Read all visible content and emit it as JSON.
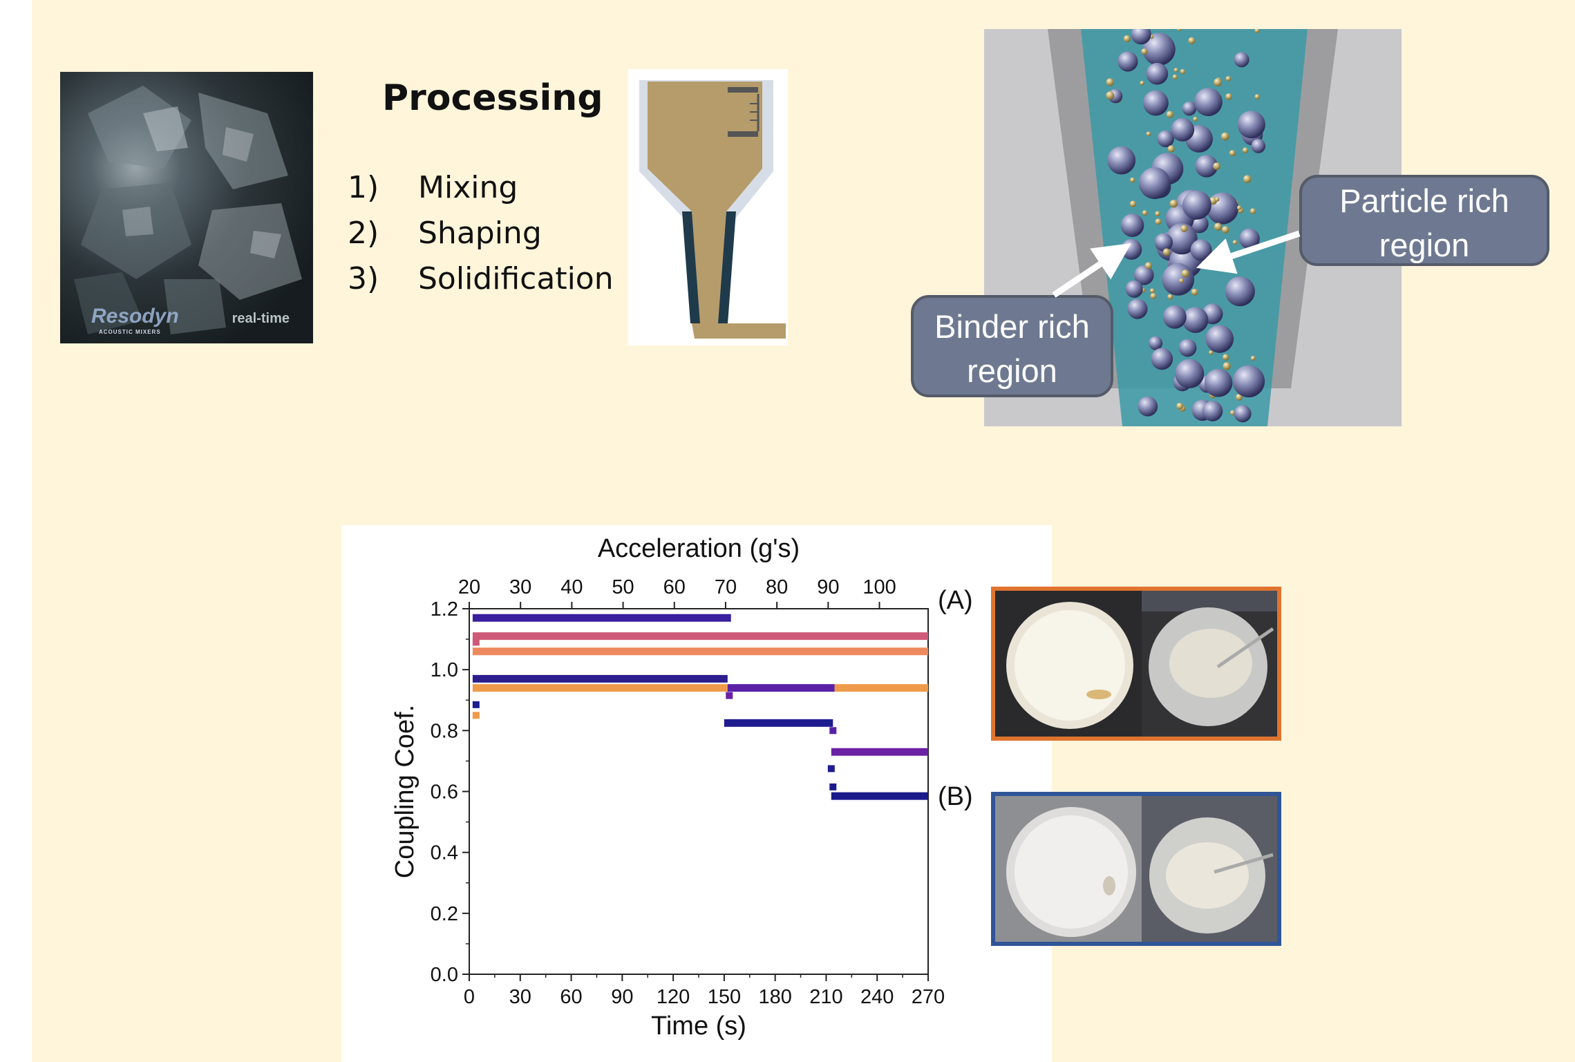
{
  "left_photo": {
    "watermark_brand": "Resodyn",
    "watermark_tagline": "ACOUSTIC MIXERS",
    "watermark_label": "real-time"
  },
  "processing": {
    "title": "Processing",
    "steps": [
      {
        "num": "1)",
        "label": "Mixing"
      },
      {
        "num": "2)",
        "label": "Shaping"
      },
      {
        "num": "3)",
        "label": "Solidification"
      }
    ]
  },
  "render": {
    "callouts": {
      "particle": "Particle rich region",
      "binder": "Binder rich region"
    }
  },
  "panel_tags": {
    "a": "(A)",
    "b": "(B)"
  },
  "colors": {
    "background": "#fff5da",
    "orange_frame": "#e0742f",
    "blue_frame": "#2f5597",
    "callout_fill": "#6e7991"
  },
  "chart_data": {
    "type": "line",
    "xlabel": "Time (s)",
    "ylabel": "Coupling Coef.",
    "top_axis_label": "Acceleration (g's)",
    "xlim": [
      0,
      270
    ],
    "ylim": [
      0,
      1.2
    ],
    "top_xlim": [
      20,
      109.5
    ],
    "x_ticks": [
      "0",
      "30",
      "60",
      "90",
      "120",
      "150",
      "180",
      "210",
      "240",
      "270"
    ],
    "y_ticks": [
      "0.0",
      "0.2",
      "0.4",
      "0.6",
      "0.8",
      "1.0",
      "1.2"
    ],
    "top_ticks": [
      "20",
      "30",
      "40",
      "50",
      "60",
      "70",
      "80",
      "90",
      "100"
    ],
    "segments": [
      {
        "color": "#3a1f9e",
        "x": [
          2,
          154
        ],
        "y": 1.17
      },
      {
        "color": "#cf5a78",
        "x": [
          2,
          270
        ],
        "y": 1.11
      },
      {
        "color": "#ee8a5e",
        "x": [
          2,
          270
        ],
        "y": 1.06
      },
      {
        "color": "#2c1d8c",
        "x": [
          2,
          152
        ],
        "y": 0.97
      },
      {
        "color": "#ef9a4a",
        "x": [
          2,
          152
        ],
        "y": 0.94
      },
      {
        "color": "#5a21a6",
        "x": [
          152,
          215
        ],
        "y": 0.94
      },
      {
        "color": "#ef9a4a",
        "x": [
          215,
          270
        ],
        "y": 0.94
      },
      {
        "color": "#1f1c90",
        "x": [
          150,
          214
        ],
        "y": 0.825
      },
      {
        "color": "#6a21a3",
        "x": [
          213,
          270
        ],
        "y": 0.73
      },
      {
        "color": "#1a1a8a",
        "x": [
          213,
          270
        ],
        "y": 0.585
      }
    ],
    "points": [
      {
        "color": "#cf5a78",
        "x": 4,
        "y": 1.09
      },
      {
        "color": "#1f1c90",
        "x": 4,
        "y": 0.885
      },
      {
        "color": "#ef9a4a",
        "x": 4,
        "y": 0.85
      },
      {
        "color": "#6a21a3",
        "x": 153,
        "y": 0.915
      },
      {
        "color": "#5a21a6",
        "x": 214,
        "y": 0.8
      },
      {
        "color": "#1f1c90",
        "x": 213,
        "y": 0.675
      },
      {
        "color": "#1a1a8a",
        "x": 214,
        "y": 0.615
      }
    ]
  }
}
